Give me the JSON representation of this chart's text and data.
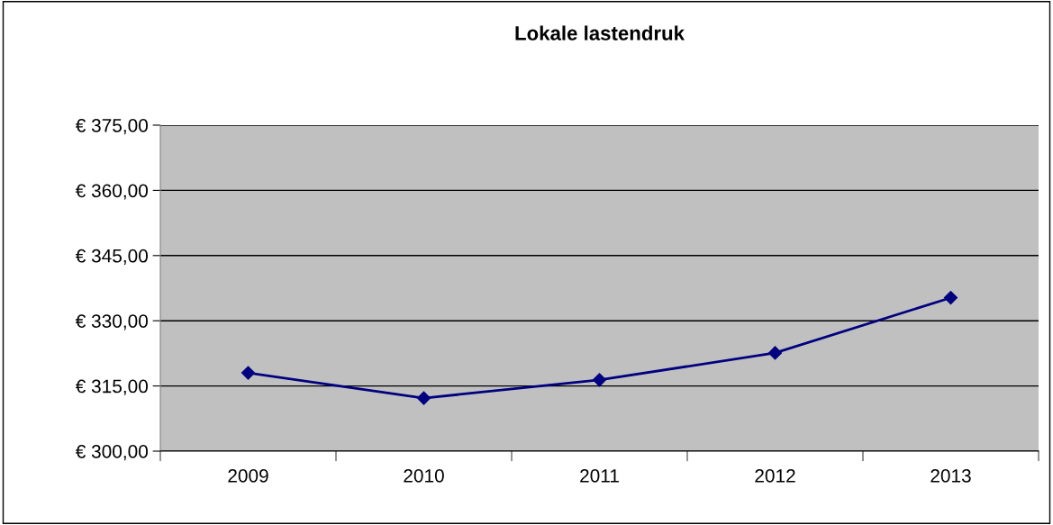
{
  "chart_data": {
    "type": "line",
    "title": "Lokale lastendruk",
    "categories": [
      "2009",
      "2010",
      "2011",
      "2012",
      "2013"
    ],
    "series": [
      {
        "color": "#000080",
        "values": [
          318.0,
          312.2,
          316.4,
          322.6,
          335.3
        ]
      }
    ],
    "ylim": [
      300,
      375
    ],
    "yticks": [
      {
        "value": 300,
        "label": "€ 300,00"
      },
      {
        "value": 315,
        "label": "€ 315,00"
      },
      {
        "value": 330,
        "label": "€ 330,00"
      },
      {
        "value": 345,
        "label": "€ 345,00"
      },
      {
        "value": 360,
        "label": "€ 360,00"
      },
      {
        "value": 375,
        "label": "€ 375,00"
      }
    ],
    "grid": "y",
    "marker": "diamond",
    "line_style": "solid",
    "legend": false
  }
}
